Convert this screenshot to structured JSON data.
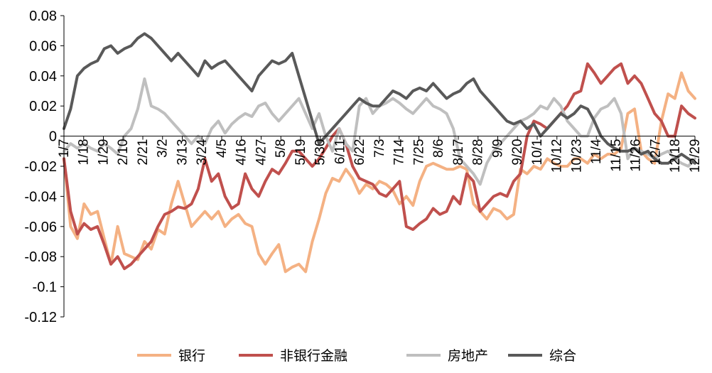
{
  "chart_data": {
    "type": "line",
    "title": "",
    "xlabel": "",
    "ylabel": "",
    "ylim": [
      -0.12,
      0.08
    ],
    "y_ticks": [
      0.08,
      0.06,
      0.04,
      0.02,
      0,
      -0.02,
      -0.04,
      -0.06,
      -0.08,
      -0.1,
      -0.12
    ],
    "y_tick_labels": [
      "0.08",
      "0.06",
      "0.04",
      "0.02",
      "0",
      "-0.02",
      "-0.04",
      "-0.06",
      "-0.08",
      "-0.1",
      "-0.12"
    ],
    "x_tick_labels": [
      "1/7",
      "1/18",
      "1/29",
      "2/10",
      "2/21",
      "3/2",
      "3/13",
      "3/24",
      "4/5",
      "4/16",
      "4/27",
      "5/8",
      "5/19",
      "5/30",
      "6/11",
      "6/22",
      "7/3",
      "7/14",
      "7/25",
      "8/6",
      "8/17",
      "8/28",
      "9/9",
      "9/20",
      "10/1",
      "10/12",
      "10/23",
      "11/4",
      "11/15",
      "11/26",
      "12/7",
      "12/18",
      "12/29"
    ],
    "grid": false,
    "legend_position": "bottom",
    "series": [
      {
        "name": "银行",
        "color": "#F4B183",
        "values": [
          -0.015,
          -0.06,
          -0.068,
          -0.045,
          -0.052,
          -0.05,
          -0.068,
          -0.085,
          -0.06,
          -0.078,
          -0.08,
          -0.082,
          -0.07,
          -0.075,
          -0.062,
          -0.065,
          -0.045,
          -0.03,
          -0.045,
          -0.06,
          -0.055,
          -0.05,
          -0.055,
          -0.05,
          -0.06,
          -0.055,
          -0.052,
          -0.058,
          -0.06,
          -0.078,
          -0.085,
          -0.078,
          -0.072,
          -0.09,
          -0.087,
          -0.085,
          -0.09,
          -0.07,
          -0.055,
          -0.038,
          -0.028,
          -0.03,
          -0.022,
          -0.028,
          -0.038,
          -0.032,
          -0.035,
          -0.03,
          -0.032,
          -0.036,
          -0.045,
          -0.04,
          -0.046,
          -0.03,
          -0.02,
          -0.018,
          -0.02,
          -0.022,
          -0.022,
          -0.02,
          -0.022,
          -0.045,
          -0.05,
          -0.055,
          -0.048,
          -0.05,
          -0.055,
          -0.052,
          -0.022,
          -0.025,
          -0.02,
          -0.022,
          -0.015,
          -0.018,
          -0.02,
          -0.02,
          -0.015,
          -0.015,
          -0.018,
          -0.012,
          -0.015,
          -0.012,
          -0.012,
          -0.008,
          0.015,
          0.018,
          -0.01,
          -0.015,
          -0.018,
          0.01,
          0.028,
          0.025,
          0.042,
          0.03,
          0.025
        ]
      },
      {
        "name": "非银行金融",
        "color": "#C0504D",
        "values": [
          -0.015,
          -0.05,
          -0.065,
          -0.058,
          -0.062,
          -0.06,
          -0.072,
          -0.085,
          -0.08,
          -0.088,
          -0.085,
          -0.08,
          -0.075,
          -0.07,
          -0.06,
          -0.052,
          -0.05,
          -0.047,
          -0.048,
          -0.045,
          -0.035,
          -0.015,
          -0.03,
          -0.025,
          -0.04,
          -0.048,
          -0.045,
          -0.025,
          -0.035,
          -0.04,
          -0.03,
          -0.022,
          -0.025,
          -0.018,
          -0.01,
          -0.01,
          -0.015,
          -0.02,
          -0.015,
          -0.008,
          0.0,
          0.005,
          -0.005,
          -0.02,
          -0.028,
          -0.03,
          -0.032,
          -0.038,
          -0.04,
          -0.035,
          -0.03,
          -0.06,
          -0.062,
          -0.058,
          -0.055,
          -0.048,
          -0.052,
          -0.05,
          -0.04,
          -0.045,
          -0.025,
          -0.03,
          -0.05,
          -0.045,
          -0.04,
          -0.038,
          -0.04,
          -0.03,
          -0.025,
          0.0,
          0.01,
          0.008,
          0.005,
          0.01,
          0.015,
          0.02,
          0.028,
          0.03,
          0.048,
          0.042,
          0.035,
          0.04,
          0.045,
          0.048,
          0.035,
          0.04,
          0.035,
          0.025,
          0.015,
          0.01,
          0.0,
          0.0,
          0.02,
          0.015,
          0.012
        ]
      },
      {
        "name": "房地产",
        "color": "#BFBFBF",
        "values": [
          -0.01,
          -0.005,
          -0.008,
          -0.005,
          -0.008,
          -0.01,
          -0.005,
          -0.008,
          -0.012,
          0.0,
          0.005,
          0.018,
          0.038,
          0.02,
          0.018,
          0.015,
          0.01,
          0.005,
          0.0,
          -0.005,
          0.0,
          -0.005,
          0.005,
          0.01,
          0.002,
          0.008,
          0.012,
          0.015,
          0.013,
          0.02,
          0.022,
          0.015,
          0.01,
          0.015,
          0.02,
          0.025,
          0.015,
          0.005,
          0.015,
          0.0,
          -0.01,
          0.005,
          -0.005,
          -0.01,
          0.02,
          0.025,
          0.015,
          0.02,
          0.022,
          0.025,
          0.022,
          0.018,
          0.015,
          0.02,
          0.025,
          0.02,
          0.018,
          0.015,
          0.005,
          -0.015,
          -0.02,
          -0.025,
          -0.032,
          -0.018,
          -0.01,
          -0.005,
          0.0,
          0.005,
          0.01,
          0.012,
          0.015,
          0.02,
          0.018,
          0.025,
          0.02,
          0.01,
          0.005,
          0.0,
          0.0,
          0.012,
          0.018,
          0.02,
          0.025,
          0.015,
          -0.015,
          -0.008,
          -0.01,
          -0.012,
          -0.015,
          -0.012,
          -0.01,
          -0.015,
          -0.018,
          -0.02,
          -0.015
        ]
      },
      {
        "name": "综合",
        "color": "#595959",
        "values": [
          0.005,
          0.018,
          0.04,
          0.045,
          0.048,
          0.05,
          0.058,
          0.06,
          0.055,
          0.058,
          0.06,
          0.065,
          0.068,
          0.065,
          0.06,
          0.055,
          0.05,
          0.055,
          0.05,
          0.045,
          0.04,
          0.05,
          0.045,
          0.048,
          0.05,
          0.045,
          0.04,
          0.035,
          0.03,
          0.04,
          0.045,
          0.05,
          0.048,
          0.05,
          0.055,
          0.04,
          0.025,
          0.01,
          -0.005,
          0.0,
          0.005,
          0.01,
          0.015,
          0.02,
          0.025,
          0.022,
          0.02,
          0.02,
          0.025,
          0.03,
          0.028,
          0.025,
          0.03,
          0.032,
          0.03,
          0.035,
          0.03,
          0.025,
          0.028,
          0.03,
          0.035,
          0.038,
          0.03,
          0.025,
          0.02,
          0.015,
          0.01,
          0.008,
          0.01,
          0.005,
          0.008,
          0.0,
          0.005,
          0.01,
          0.015,
          0.012,
          0.015,
          0.02,
          0.018,
          0.01,
          0.0,
          -0.005,
          -0.008,
          -0.01,
          -0.01,
          -0.008,
          -0.012,
          -0.01,
          -0.015,
          -0.018,
          -0.018,
          -0.015,
          -0.012,
          -0.015,
          -0.018
        ]
      }
    ]
  }
}
